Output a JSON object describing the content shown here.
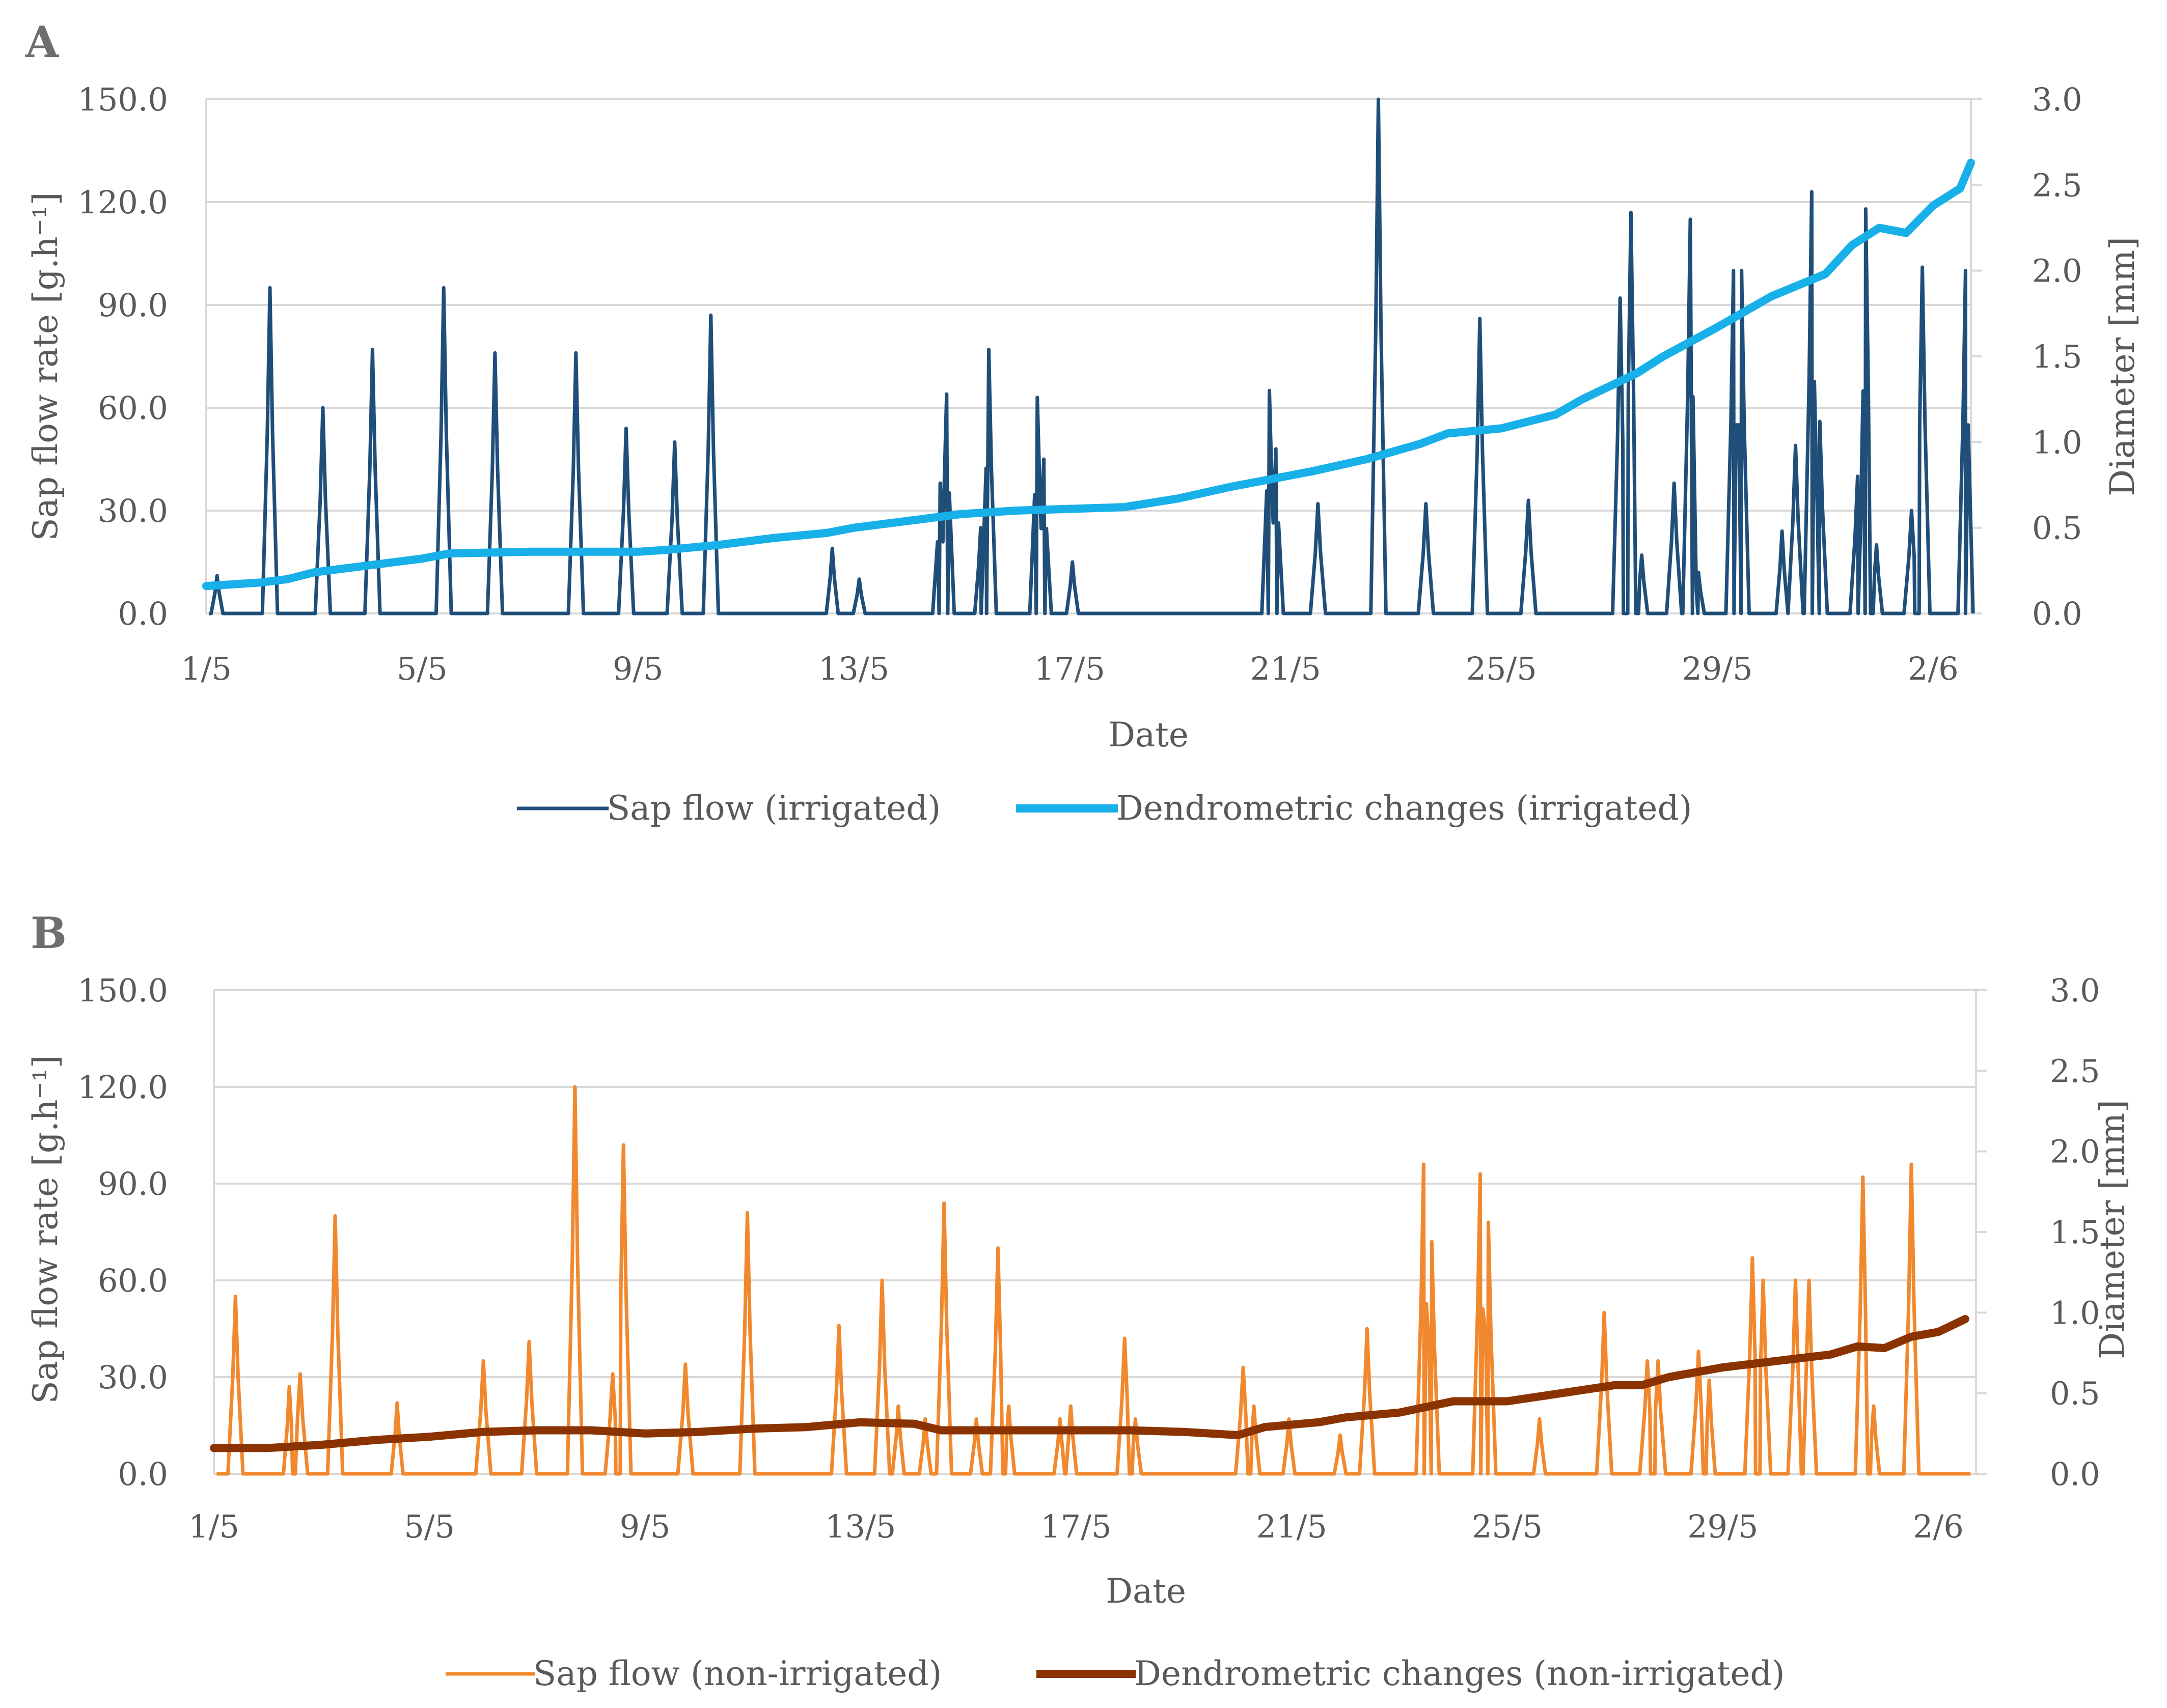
{
  "figure": {
    "colors": {
      "irrigated_sap": "#1f4e79",
      "irrigated_dendro": "#17b0e8",
      "nonirrigated_sap": "#f2882d",
      "nonirrigated_dendro": "#8a3300",
      "grid": "#d9d9d9",
      "text": "#595959"
    }
  },
  "chart_data": [
    {
      "panel": "A",
      "type": "line",
      "xlabel": "Date",
      "ylabel": "Sap flow rate [g.h⁻¹]",
      "y2label": "Diameter [mm]",
      "x_tick_labels": [
        "1/5",
        "5/5",
        "9/5",
        "13/5",
        "17/5",
        "21/5",
        "25/5",
        "29/5",
        "2/6"
      ],
      "x_tick_days": [
        0,
        4,
        8,
        12,
        16,
        20,
        24,
        28,
        32
      ],
      "xlim": [
        0,
        32.7
      ],
      "ylim": [
        0,
        150
      ],
      "y_ticks": [
        "0.0",
        "30.0",
        "60.0",
        "90.0",
        "120.0",
        "150.0"
      ],
      "y2lim": [
        0,
        3
      ],
      "y2_ticks": [
        "0.0",
        "0.5",
        "1.0",
        "1.5",
        "2.0",
        "2.5",
        "3.0"
      ],
      "grid": true,
      "legend_position": "bottom",
      "series": [
        {
          "name": "Sap flow (irrigated)",
          "axis": "left",
          "style": "thin",
          "peaks": [
            {
              "day": 0.2,
              "value": 11
            },
            {
              "day": 1.18,
              "value": 95
            },
            {
              "day": 2.16,
              "value": 60
            },
            {
              "day": 3.08,
              "value": 77
            },
            {
              "day": 4.4,
              "value": 95
            },
            {
              "day": 5.35,
              "value": 76
            },
            {
              "day": 6.85,
              "value": 76
            },
            {
              "day": 7.78,
              "value": 54
            },
            {
              "day": 8.68,
              "value": 50
            },
            {
              "day": 9.35,
              "value": 87
            },
            {
              "day": 11.6,
              "value": 19
            },
            {
              "day": 12.1,
              "value": 10
            },
            {
              "day": 13.6,
              "value": 38
            },
            {
              "day": 13.72,
              "value": 64
            },
            {
              "day": 14.35,
              "value": 25
            },
            {
              "day": 14.5,
              "value": 77
            },
            {
              "day": 15.4,
              "value": 63
            },
            {
              "day": 15.52,
              "value": 45
            },
            {
              "day": 16.05,
              "value": 15
            },
            {
              "day": 19.7,
              "value": 65
            },
            {
              "day": 19.82,
              "value": 48
            },
            {
              "day": 20.6,
              "value": 32
            },
            {
              "day": 21.72,
              "value": 150
            },
            {
              "day": 22.6,
              "value": 32
            },
            {
              "day": 23.6,
              "value": 86
            },
            {
              "day": 24.5,
              "value": 33
            },
            {
              "day": 26.2,
              "value": 92
            },
            {
              "day": 26.4,
              "value": 117
            },
            {
              "day": 26.6,
              "value": 17
            },
            {
              "day": 27.2,
              "value": 38
            },
            {
              "day": 27.5,
              "value": 115
            },
            {
              "day": 27.65,
              "value": 12
            },
            {
              "day": 28.3,
              "value": 100
            },
            {
              "day": 28.45,
              "value": 100
            },
            {
              "day": 29.2,
              "value": 24
            },
            {
              "day": 29.45,
              "value": 49
            },
            {
              "day": 29.75,
              "value": 123
            },
            {
              "day": 29.9,
              "value": 56
            },
            {
              "day": 30.6,
              "value": 40
            },
            {
              "day": 30.75,
              "value": 118
            },
            {
              "day": 30.95,
              "value": 20
            },
            {
              "day": 31.6,
              "value": 30
            },
            {
              "day": 31.8,
              "value": 101
            },
            {
              "day": 32.6,
              "value": 100
            }
          ]
        },
        {
          "name": "Dendrometric changes (irrigated)",
          "axis": "right",
          "style": "thick",
          "points": [
            [
              0,
              0.16
            ],
            [
              1,
              0.18
            ],
            [
              1.5,
              0.2
            ],
            [
              2,
              0.24
            ],
            [
              3,
              0.28
            ],
            [
              3.5,
              0.3
            ],
            [
              4,
              0.32
            ],
            [
              4.5,
              0.35
            ],
            [
              6,
              0.36
            ],
            [
              7,
              0.36
            ],
            [
              8,
              0.36
            ],
            [
              8.5,
              0.37
            ],
            [
              9.5,
              0.4
            ],
            [
              10.5,
              0.44
            ],
            [
              11.5,
              0.47
            ],
            [
              12,
              0.5
            ],
            [
              13,
              0.54
            ],
            [
              14,
              0.58
            ],
            [
              15,
              0.6
            ],
            [
              16,
              0.61
            ],
            [
              17,
              0.62
            ],
            [
              18,
              0.67
            ],
            [
              19,
              0.74
            ],
            [
              19.5,
              0.77
            ],
            [
              20.5,
              0.83
            ],
            [
              21.5,
              0.9
            ],
            [
              22.5,
              0.99
            ],
            [
              23,
              1.05
            ],
            [
              24,
              1.08
            ],
            [
              25,
              1.16
            ],
            [
              25.5,
              1.25
            ],
            [
              26.5,
              1.4
            ],
            [
              27,
              1.5
            ],
            [
              28,
              1.67
            ],
            [
              29,
              1.85
            ],
            [
              30,
              1.98
            ],
            [
              30.5,
              2.15
            ],
            [
              31,
              2.25
            ],
            [
              31.5,
              2.22
            ],
            [
              32,
              2.38
            ],
            [
              32.5,
              2.48
            ],
            [
              32.7,
              2.63
            ]
          ]
        }
      ]
    },
    {
      "panel": "B",
      "type": "line",
      "xlabel": "Date",
      "ylabel": "Sap flow rate [g.h⁻¹]",
      "y2label": "Diameter [mm]",
      "x_tick_labels": [
        "1/5",
        "5/5",
        "9/5",
        "13/5",
        "17/5",
        "21/5",
        "25/5",
        "29/5",
        "2/6"
      ],
      "x_tick_days": [
        0,
        4,
        8,
        12,
        16,
        20,
        24,
        28,
        32
      ],
      "xlim": [
        0,
        32.7
      ],
      "ylim": [
        0,
        150
      ],
      "y_ticks": [
        "0.0",
        "30.0",
        "60.0",
        "90.0",
        "120.0",
        "150.0"
      ],
      "y2lim": [
        0,
        3
      ],
      "y2_ticks": [
        "0.0",
        "0.5",
        "1.0",
        "1.5",
        "2.0",
        "2.5",
        "3.0"
      ],
      "grid": true,
      "legend_position": "bottom",
      "series": [
        {
          "name": "Sap flow (non-irrigated)",
          "axis": "left",
          "style": "thin",
          "peaks": [
            {
              "day": 0.4,
              "value": 55
            },
            {
              "day": 1.4,
              "value": 27
            },
            {
              "day": 1.6,
              "value": 31
            },
            {
              "day": 2.25,
              "value": 80
            },
            {
              "day": 3.4,
              "value": 22
            },
            {
              "day": 5.0,
              "value": 35
            },
            {
              "day": 5.85,
              "value": 41
            },
            {
              "day": 6.7,
              "value": 120
            },
            {
              "day": 7.4,
              "value": 31
            },
            {
              "day": 7.6,
              "value": 102
            },
            {
              "day": 8.75,
              "value": 34
            },
            {
              "day": 9.9,
              "value": 81
            },
            {
              "day": 11.6,
              "value": 46
            },
            {
              "day": 12.4,
              "value": 60
            },
            {
              "day": 12.7,
              "value": 21
            },
            {
              "day": 13.2,
              "value": 17
            },
            {
              "day": 13.55,
              "value": 84
            },
            {
              "day": 14.15,
              "value": 17
            },
            {
              "day": 14.55,
              "value": 70
            },
            {
              "day": 14.75,
              "value": 21
            },
            {
              "day": 15.7,
              "value": 17
            },
            {
              "day": 15.9,
              "value": 21
            },
            {
              "day": 16.9,
              "value": 42
            },
            {
              "day": 17.1,
              "value": 17
            },
            {
              "day": 19.1,
              "value": 33
            },
            {
              "day": 19.3,
              "value": 21
            },
            {
              "day": 19.95,
              "value": 17
            },
            {
              "day": 20.9,
              "value": 12
            },
            {
              "day": 21.4,
              "value": 45
            },
            {
              "day": 22.45,
              "value": 96
            },
            {
              "day": 22.6,
              "value": 72
            },
            {
              "day": 23.5,
              "value": 93
            },
            {
              "day": 23.65,
              "value": 78
            },
            {
              "day": 24.6,
              "value": 17
            },
            {
              "day": 25.8,
              "value": 50
            },
            {
              "day": 26.6,
              "value": 35
            },
            {
              "day": 26.8,
              "value": 35
            },
            {
              "day": 27.55,
              "value": 38
            },
            {
              "day": 27.75,
              "value": 29
            },
            {
              "day": 28.55,
              "value": 67
            },
            {
              "day": 28.75,
              "value": 60
            },
            {
              "day": 29.35,
              "value": 60
            },
            {
              "day": 29.6,
              "value": 60
            },
            {
              "day": 30.6,
              "value": 92
            },
            {
              "day": 30.8,
              "value": 21
            },
            {
              "day": 31.5,
              "value": 96
            }
          ]
        },
        {
          "name": "Dendrometric changes (non-irrigated)",
          "axis": "right",
          "style": "thick",
          "points": [
            [
              0,
              0.16
            ],
            [
              1,
              0.16
            ],
            [
              2,
              0.18
            ],
            [
              3,
              0.21
            ],
            [
              4,
              0.23
            ],
            [
              5,
              0.26
            ],
            [
              6,
              0.27
            ],
            [
              7,
              0.27
            ],
            [
              8,
              0.25
            ],
            [
              9,
              0.26
            ],
            [
              10,
              0.28
            ],
            [
              11,
              0.29
            ],
            [
              12,
              0.32
            ],
            [
              13,
              0.31
            ],
            [
              13.5,
              0.27
            ],
            [
              14,
              0.27
            ],
            [
              16,
              0.27
            ],
            [
              17,
              0.27
            ],
            [
              18,
              0.26
            ],
            [
              19,
              0.24
            ],
            [
              19.5,
              0.29
            ],
            [
              20.5,
              0.32
            ],
            [
              21,
              0.35
            ],
            [
              22,
              0.38
            ],
            [
              23,
              0.45
            ],
            [
              24,
              0.45
            ],
            [
              25,
              0.5
            ],
            [
              26,
              0.55
            ],
            [
              26.5,
              0.55
            ],
            [
              27,
              0.6
            ],
            [
              28,
              0.66
            ],
            [
              28.5,
              0.68
            ],
            [
              29,
              0.7
            ],
            [
              30,
              0.74
            ],
            [
              30.5,
              0.79
            ],
            [
              31,
              0.78
            ],
            [
              31.5,
              0.85
            ],
            [
              32,
              0.88
            ],
            [
              32.5,
              0.96
            ]
          ]
        }
      ]
    }
  ]
}
